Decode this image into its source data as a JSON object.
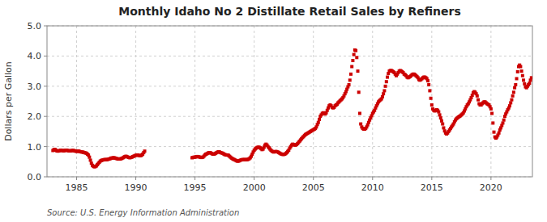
{
  "chart_data": {
    "type": "scatter",
    "title": "Monthly Idaho No 2 Distillate Retail Sales by Refiners",
    "y_label": "Dollars per Gallon",
    "annotations": [
      "Source: U.S. Energy Information Administration"
    ],
    "color": "#cc0000",
    "marker": "square",
    "grid": true,
    "xlim": [
      1982.5,
      2023.5
    ],
    "ylim": [
      0.0,
      5.0
    ],
    "xticks": [
      1985,
      1990,
      1995,
      2000,
      2005,
      2010,
      2015,
      2020
    ],
    "yticks": [
      {
        "value": 0.0,
        "label": "0.0"
      },
      {
        "value": 1.0,
        "label": "1.0"
      },
      {
        "value": 2.0,
        "label": "2.0"
      },
      {
        "value": 3.0,
        "label": "3.0"
      },
      {
        "value": 4.0,
        "label": "4.0"
      },
      {
        "value": 5.0,
        "label": "5.0"
      }
    ],
    "x": [
      1983.0,
      1983.083,
      1983.167,
      1983.25,
      1983.333,
      1983.417,
      1983.5,
      1983.583,
      1983.667,
      1983.75,
      1983.833,
      1983.917,
      1984.0,
      1984.083,
      1984.167,
      1984.25,
      1984.333,
      1984.417,
      1984.5,
      1984.583,
      1984.667,
      1984.75,
      1984.833,
      1984.917,
      1985.0,
      1985.083,
      1985.167,
      1985.25,
      1985.333,
      1985.417,
      1985.5,
      1985.583,
      1985.667,
      1985.75,
      1985.833,
      1985.917,
      1986.0,
      1986.083,
      1986.167,
      1986.25,
      1986.333,
      1986.417,
      1986.5,
      1986.583,
      1986.667,
      1986.75,
      1986.833,
      1986.917,
      1987.0,
      1987.083,
      1987.167,
      1987.25,
      1987.333,
      1987.417,
      1987.5,
      1987.583,
      1987.667,
      1987.75,
      1987.833,
      1987.917,
      1988.0,
      1988.083,
      1988.167,
      1988.25,
      1988.333,
      1988.417,
      1988.5,
      1988.583,
      1988.667,
      1988.75,
      1988.833,
      1988.917,
      1989.0,
      1989.083,
      1989.167,
      1989.25,
      1989.333,
      1989.417,
      1989.5,
      1989.583,
      1989.667,
      1989.75,
      1989.833,
      1989.917,
      1990.0,
      1990.083,
      1990.167,
      1990.25,
      1990.333,
      1990.417,
      1990.5,
      1990.583,
      1990.667,
      1990.75,
      1994.75,
      1994.833,
      1994.917,
      1995.0,
      1995.083,
      1995.167,
      1995.25,
      1995.333,
      1995.417,
      1995.5,
      1995.583,
      1995.667,
      1995.75,
      1995.833,
      1995.917,
      1996.0,
      1996.083,
      1996.167,
      1996.25,
      1996.333,
      1996.417,
      1996.5,
      1996.583,
      1996.667,
      1996.75,
      1996.833,
      1996.917,
      1997.0,
      1997.083,
      1997.167,
      1997.25,
      1997.333,
      1997.417,
      1997.5,
      1997.583,
      1997.667,
      1997.75,
      1997.833,
      1997.917,
      1998.0,
      1998.083,
      1998.167,
      1998.25,
      1998.333,
      1998.417,
      1998.5,
      1998.583,
      1998.667,
      1998.75,
      1998.833,
      1998.917,
      1999.0,
      1999.083,
      1999.167,
      1999.25,
      1999.333,
      1999.417,
      1999.5,
      1999.583,
      1999.667,
      1999.75,
      1999.833,
      1999.917,
      2000.0,
      2000.083,
      2000.167,
      2000.25,
      2000.333,
      2000.417,
      2000.5,
      2000.583,
      2000.667,
      2000.75,
      2000.833,
      2000.917,
      2001.0,
      2001.083,
      2001.167,
      2001.25,
      2001.333,
      2001.417,
      2001.5,
      2001.583,
      2001.667,
      2001.75,
      2001.833,
      2001.917,
      2002.0,
      2002.083,
      2002.167,
      2002.25,
      2002.333,
      2002.417,
      2002.5,
      2002.583,
      2002.667,
      2002.75,
      2002.833,
      2002.917,
      2003.0,
      2003.083,
      2003.167,
      2003.25,
      2003.333,
      2003.417,
      2003.5,
      2003.583,
      2003.667,
      2003.75,
      2003.833,
      2003.917,
      2004.0,
      2004.083,
      2004.167,
      2004.25,
      2004.333,
      2004.417,
      2004.5,
      2004.583,
      2004.667,
      2004.75,
      2004.833,
      2004.917,
      2005.0,
      2005.083,
      2005.167,
      2005.25,
      2005.333,
      2005.417,
      2005.5,
      2005.583,
      2005.667,
      2005.75,
      2005.833,
      2005.917,
      2006.0,
      2006.083,
      2006.167,
      2006.25,
      2006.333,
      2006.417,
      2006.5,
      2006.583,
      2006.667,
      2006.75,
      2006.833,
      2006.917,
      2007.0,
      2007.083,
      2007.167,
      2007.25,
      2007.333,
      2007.417,
      2007.5,
      2007.583,
      2007.667,
      2007.75,
      2007.833,
      2007.917,
      2008.0,
      2008.083,
      2008.167,
      2008.25,
      2008.333,
      2008.417,
      2008.5,
      2008.583,
      2008.667,
      2008.75,
      2008.833,
      2008.917,
      2009.0,
      2009.083,
      2009.167,
      2009.25,
      2009.333,
      2009.417,
      2009.5,
      2009.583,
      2009.667,
      2009.75,
      2009.833,
      2009.917,
      2010.0,
      2010.083,
      2010.167,
      2010.25,
      2010.333,
      2010.417,
      2010.5,
      2010.583,
      2010.667,
      2010.75,
      2010.833,
      2010.917,
      2011.0,
      2011.083,
      2011.167,
      2011.25,
      2011.333,
      2011.417,
      2011.5,
      2011.583,
      2011.667,
      2011.75,
      2011.833,
      2011.917,
      2012.0,
      2012.083,
      2012.167,
      2012.25,
      2012.333,
      2012.417,
      2012.5,
      2012.583,
      2012.667,
      2012.75,
      2012.833,
      2012.917,
      2013.0,
      2013.083,
      2013.167,
      2013.25,
      2013.333,
      2013.417,
      2013.5,
      2013.583,
      2013.667,
      2013.75,
      2013.833,
      2013.917,
      2014.0,
      2014.083,
      2014.167,
      2014.25,
      2014.333,
      2014.417,
      2014.5,
      2014.583,
      2014.667,
      2014.75,
      2014.833,
      2014.917,
      2015.0,
      2015.083,
      2015.167,
      2015.25,
      2015.333,
      2015.417,
      2015.5,
      2015.583,
      2015.667,
      2015.75,
      2015.833,
      2015.917,
      2016.0,
      2016.083,
      2016.167,
      2016.25,
      2016.333,
      2016.417,
      2016.5,
      2016.583,
      2016.667,
      2016.75,
      2016.833,
      2016.917,
      2017.0,
      2017.083,
      2017.167,
      2017.25,
      2017.333,
      2017.417,
      2017.5,
      2017.583,
      2017.667,
      2017.75,
      2017.833,
      2017.917,
      2018.0,
      2018.083,
      2018.167,
      2018.25,
      2018.333,
      2018.417,
      2018.5,
      2018.583,
      2018.667,
      2018.75,
      2018.833,
      2018.917,
      2019.0,
      2019.083,
      2019.167,
      2019.25,
      2019.333,
      2019.417,
      2019.5,
      2019.583,
      2019.667,
      2019.75,
      2019.833,
      2019.917,
      2020.0,
      2020.083,
      2020.167,
      2020.25,
      2020.333,
      2020.417,
      2020.5,
      2020.583,
      2020.667,
      2020.75,
      2020.833,
      2020.917,
      2021.0,
      2021.083,
      2021.167,
      2021.25,
      2021.333,
      2021.417,
      2021.5,
      2021.583,
      2021.667,
      2021.75,
      2021.833,
      2021.917,
      2022.0,
      2022.083,
      2022.167,
      2022.25,
      2022.333,
      2022.417,
      2022.5,
      2022.583,
      2022.667,
      2022.75,
      2022.833,
      2022.917,
      2023.0,
      2023.083,
      2023.167,
      2023.25,
      2023.333,
      2023.417
    ],
    "values": [
      0.87,
      0.9,
      0.91,
      0.88,
      0.86,
      0.85,
      0.86,
      0.87,
      0.88,
      0.87,
      0.87,
      0.86,
      0.87,
      0.88,
      0.88,
      0.87,
      0.86,
      0.86,
      0.86,
      0.87,
      0.87,
      0.87,
      0.86,
      0.85,
      0.84,
      0.85,
      0.85,
      0.84,
      0.83,
      0.82,
      0.82,
      0.81,
      0.8,
      0.79,
      0.78,
      0.75,
      0.72,
      0.65,
      0.55,
      0.45,
      0.38,
      0.35,
      0.33,
      0.34,
      0.36,
      0.4,
      0.44,
      0.48,
      0.52,
      0.54,
      0.55,
      0.56,
      0.57,
      0.57,
      0.57,
      0.57,
      0.58,
      0.59,
      0.6,
      0.62,
      0.62,
      0.63,
      0.63,
      0.62,
      0.61,
      0.6,
      0.59,
      0.59,
      0.59,
      0.6,
      0.61,
      0.63,
      0.65,
      0.67,
      0.68,
      0.67,
      0.65,
      0.64,
      0.63,
      0.64,
      0.65,
      0.67,
      0.68,
      0.7,
      0.71,
      0.72,
      0.72,
      0.71,
      0.7,
      0.7,
      0.72,
      0.75,
      0.8,
      0.85,
      0.63,
      0.64,
      0.65,
      0.65,
      0.66,
      0.67,
      0.67,
      0.66,
      0.65,
      0.64,
      0.64,
      0.65,
      0.68,
      0.72,
      0.75,
      0.76,
      0.78,
      0.8,
      0.8,
      0.79,
      0.77,
      0.75,
      0.75,
      0.76,
      0.78,
      0.8,
      0.82,
      0.83,
      0.82,
      0.8,
      0.79,
      0.78,
      0.76,
      0.74,
      0.73,
      0.72,
      0.72,
      0.71,
      0.68,
      0.65,
      0.62,
      0.6,
      0.58,
      0.57,
      0.55,
      0.53,
      0.52,
      0.52,
      0.53,
      0.55,
      0.56,
      0.57,
      0.57,
      0.57,
      0.57,
      0.57,
      0.57,
      0.58,
      0.6,
      0.63,
      0.68,
      0.75,
      0.82,
      0.88,
      0.92,
      0.95,
      0.97,
      0.98,
      0.98,
      0.96,
      0.93,
      0.9,
      0.92,
      0.98,
      1.05,
      1.08,
      1.05,
      1.0,
      0.96,
      0.92,
      0.88,
      0.85,
      0.83,
      0.82,
      0.83,
      0.84,
      0.83,
      0.82,
      0.8,
      0.78,
      0.76,
      0.75,
      0.74,
      0.74,
      0.75,
      0.77,
      0.8,
      0.84,
      0.88,
      0.95,
      1.0,
      1.05,
      1.08,
      1.07,
      1.05,
      1.05,
      1.07,
      1.1,
      1.14,
      1.18,
      1.22,
      1.26,
      1.3,
      1.33,
      1.37,
      1.4,
      1.42,
      1.44,
      1.46,
      1.48,
      1.5,
      1.52,
      1.54,
      1.56,
      1.58,
      1.6,
      1.65,
      1.73,
      1.8,
      1.9,
      2.0,
      2.05,
      2.1,
      2.12,
      2.1,
      2.08,
      2.12,
      2.2,
      2.28,
      2.35,
      2.38,
      2.35,
      2.3,
      2.28,
      2.3,
      2.35,
      2.38,
      2.4,
      2.45,
      2.48,
      2.52,
      2.55,
      2.58,
      2.62,
      2.68,
      2.75,
      2.82,
      2.9,
      2.98,
      3.05,
      3.2,
      3.4,
      3.65,
      3.85,
      4.05,
      4.2,
      4.18,
      3.95,
      3.5,
      2.8,
      2.1,
      1.75,
      1.65,
      1.6,
      1.58,
      1.58,
      1.6,
      1.65,
      1.72,
      1.8,
      1.88,
      1.95,
      2.02,
      2.1,
      2.15,
      2.2,
      2.28,
      2.35,
      2.42,
      2.48,
      2.52,
      2.55,
      2.58,
      2.65,
      2.75,
      2.85,
      3.0,
      3.15,
      3.3,
      3.42,
      3.5,
      3.52,
      3.52,
      3.5,
      3.48,
      3.45,
      3.4,
      3.35,
      3.4,
      3.45,
      3.5,
      3.52,
      3.5,
      3.48,
      3.45,
      3.4,
      3.38,
      3.35,
      3.3,
      3.28,
      3.3,
      3.32,
      3.35,
      3.38,
      3.4,
      3.4,
      3.38,
      3.35,
      3.32,
      3.28,
      3.22,
      3.2,
      3.22,
      3.25,
      3.28,
      3.3,
      3.3,
      3.28,
      3.25,
      3.18,
      3.05,
      2.85,
      2.6,
      2.38,
      2.25,
      2.2,
      2.18,
      2.2,
      2.22,
      2.2,
      2.15,
      2.05,
      1.95,
      1.85,
      1.75,
      1.62,
      1.52,
      1.45,
      1.42,
      1.45,
      1.5,
      1.55,
      1.6,
      1.65,
      1.7,
      1.75,
      1.82,
      1.88,
      1.92,
      1.95,
      1.98,
      2.0,
      2.02,
      2.05,
      2.08,
      2.12,
      2.18,
      2.25,
      2.32,
      2.38,
      2.42,
      2.48,
      2.55,
      2.62,
      2.7,
      2.78,
      2.82,
      2.8,
      2.75,
      2.68,
      2.55,
      2.42,
      2.38,
      2.38,
      2.42,
      2.45,
      2.48,
      2.48,
      2.45,
      2.42,
      2.4,
      2.38,
      2.32,
      2.25,
      2.1,
      1.78,
      1.48,
      1.32,
      1.28,
      1.32,
      1.38,
      1.45,
      1.55,
      1.62,
      1.7,
      1.78,
      1.88,
      2.0,
      2.08,
      2.15,
      2.22,
      2.28,
      2.35,
      2.45,
      2.55,
      2.68,
      2.8,
      2.95,
      3.05,
      3.25,
      3.48,
      3.65,
      3.7,
      3.65,
      3.5,
      3.35,
      3.2,
      3.08,
      2.98,
      2.95,
      3.0,
      3.05,
      3.1,
      3.2,
      3.28
    ]
  }
}
